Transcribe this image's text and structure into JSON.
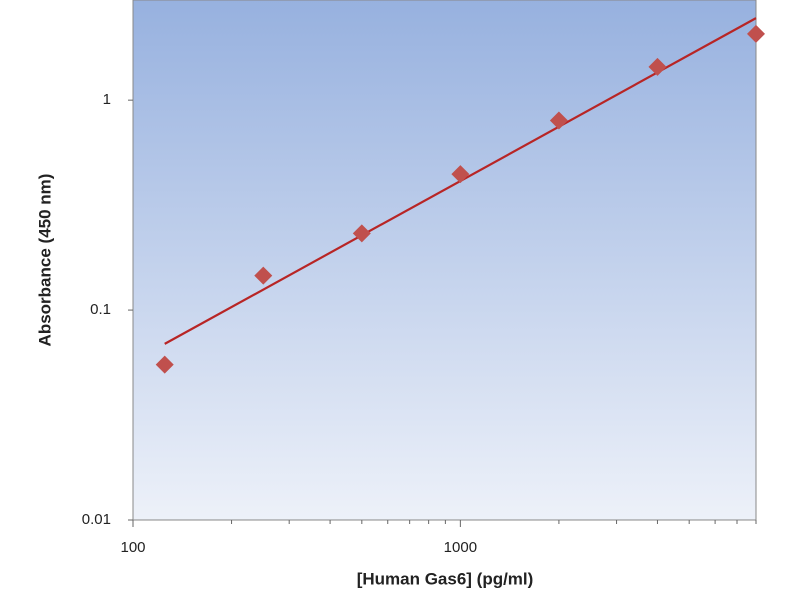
{
  "chart_data": {
    "type": "scatter",
    "x_label": "[Human Gas6] (pg/ml)",
    "y_label": "Absorbance (450 nm)",
    "xscale": "log",
    "yscale": "log",
    "xlim": [
      100,
      8000
    ],
    "ylim": [
      0.01,
      3
    ],
    "xticks": [
      100,
      1000
    ],
    "xminorticks": [
      200,
      300,
      400,
      500,
      600,
      700,
      800,
      900,
      2000,
      3000,
      4000,
      5000,
      6000,
      7000,
      8000
    ],
    "yticks": [
      0.01,
      0.1,
      1
    ],
    "series": [
      {
        "color": "#c0504d",
        "marker": "diamond",
        "x": [
          125,
          250,
          500,
          1000,
          2000,
          4000,
          8000
        ],
        "values": [
          0.055,
          0.146,
          0.232,
          0.444,
          0.8,
          1.44,
          2.07
        ]
      }
    ],
    "fit_line": {
      "color": "#b82525",
      "x": [
        125,
        8000
      ],
      "values": [
        0.069,
        2.46
      ]
    }
  }
}
